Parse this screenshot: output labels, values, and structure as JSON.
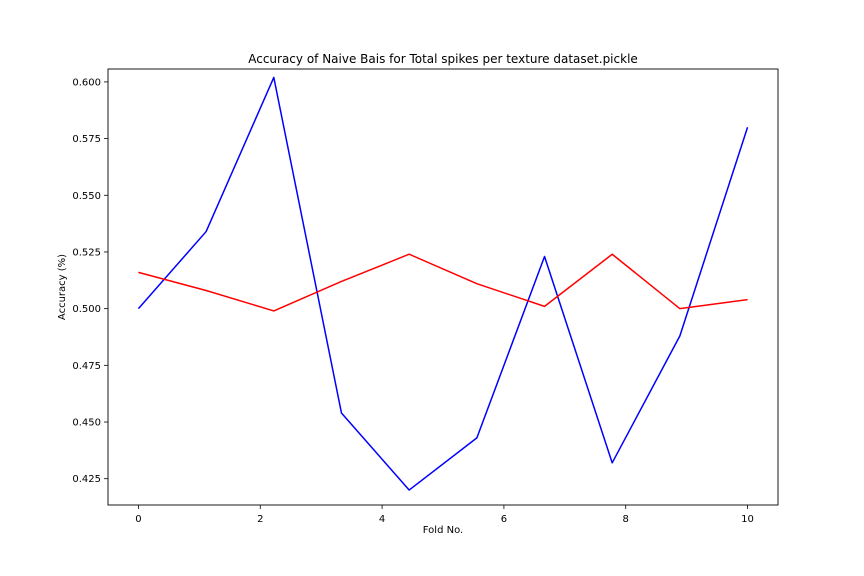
{
  "chart_data": {
    "type": "line",
    "title": "Accuracy of Naive Bais for Total spikes per texture dataset.pickle",
    "xlabel": "Fold No.",
    "ylabel": "Accuracy (%)",
    "xlim": [
      -0.5,
      10.5
    ],
    "ylim": [
      0.4134,
      0.6057
    ],
    "grid": false,
    "legend": "none",
    "x_ticks": [
      0,
      2,
      4,
      6,
      8,
      10
    ],
    "x_tick_labels": [
      "0",
      "2",
      "4",
      "6",
      "8",
      "10"
    ],
    "y_ticks": [
      0.425,
      0.45,
      0.475,
      0.5,
      0.525,
      0.55,
      0.575,
      0.6
    ],
    "y_tick_labels": [
      "0.425",
      "0.450",
      "0.475",
      "0.500",
      "0.525",
      "0.550",
      "0.575",
      "0.600"
    ],
    "x": [
      0,
      1.111,
      2.222,
      3.333,
      4.444,
      5.556,
      6.667,
      7.778,
      8.889,
      10
    ],
    "series": [
      {
        "color": "#0000ff",
        "values": [
          0.5,
          0.534,
          0.602,
          0.454,
          0.42,
          0.443,
          0.523,
          0.432,
          0.488,
          0.58
        ]
      },
      {
        "color": "#ff0000",
        "values": [
          0.516,
          0.508,
          0.499,
          0.512,
          0.524,
          0.511,
          0.501,
          0.524,
          0.5,
          0.504
        ]
      }
    ]
  }
}
